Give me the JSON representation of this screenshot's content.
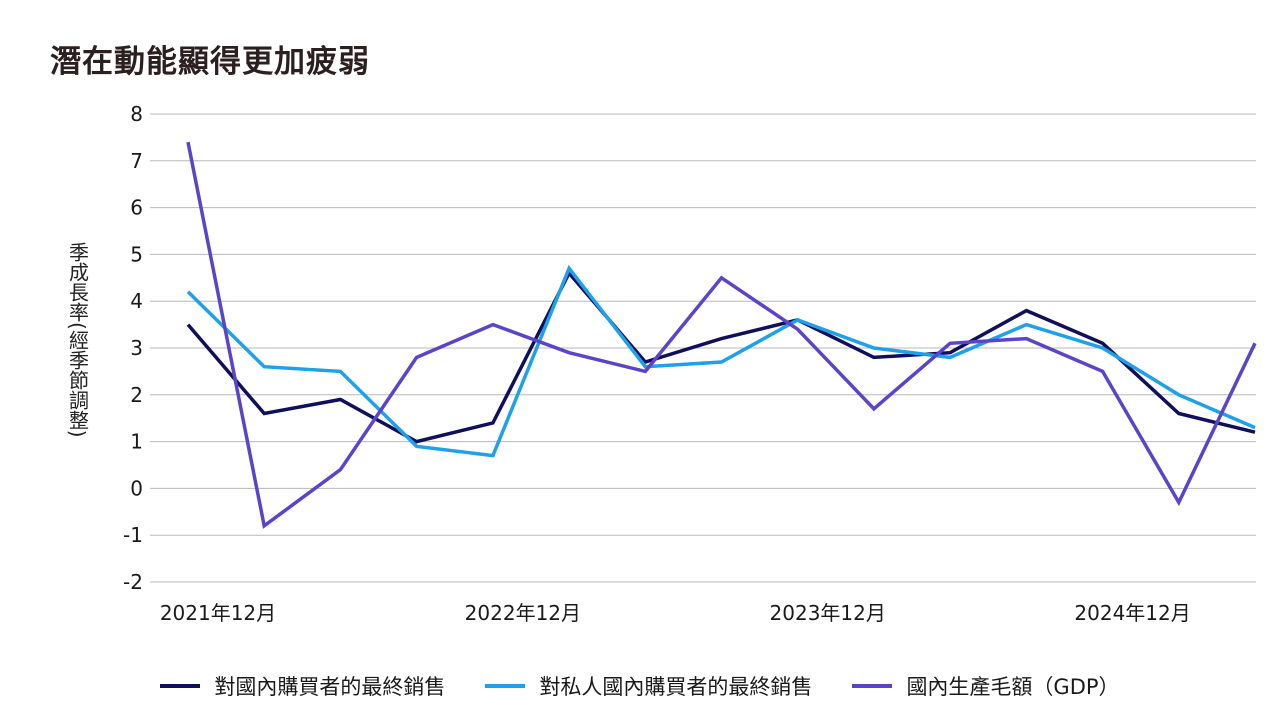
{
  "title": "潛在動能顯得更加疲弱",
  "chart_data": {
    "type": "line",
    "ylabel": "季成長率(經季節調整)",
    "ylim": [
      -2,
      8
    ],
    "yticks": [
      -2,
      -1,
      0,
      1,
      2,
      3,
      4,
      5,
      6,
      7,
      8
    ],
    "x_count": 15,
    "x_tick_labels": [
      {
        "index": 0,
        "label": "2021年12月"
      },
      {
        "index": 4,
        "label": "2022年12月"
      },
      {
        "index": 8,
        "label": "2023年12月"
      },
      {
        "index": 12,
        "label": "2024年12月"
      }
    ],
    "grid": true,
    "legend_position": "bottom",
    "series": [
      {
        "name": "對國內購買者的最終銷售",
        "color": "#0f0f5c",
        "values": [
          3.5,
          1.6,
          1.9,
          1.0,
          1.4,
          4.6,
          2.7,
          3.2,
          3.6,
          2.8,
          2.9,
          3.8,
          3.1,
          1.6,
          1.2
        ]
      },
      {
        "name": "對私人國內購買者的最終銷售",
        "color": "#1ea0ea",
        "values": [
          4.2,
          2.6,
          2.5,
          0.9,
          0.7,
          4.7,
          2.6,
          2.7,
          3.6,
          3.0,
          2.8,
          3.5,
          3.0,
          2.0,
          1.3
        ]
      },
      {
        "name": "國內生產毛額（GDP）",
        "color": "#5b44c9",
        "values": [
          7.4,
          -0.8,
          0.4,
          2.8,
          3.5,
          2.9,
          2.5,
          4.5,
          3.4,
          1.7,
          3.1,
          3.2,
          2.5,
          -0.3,
          3.1
        ]
      }
    ]
  }
}
